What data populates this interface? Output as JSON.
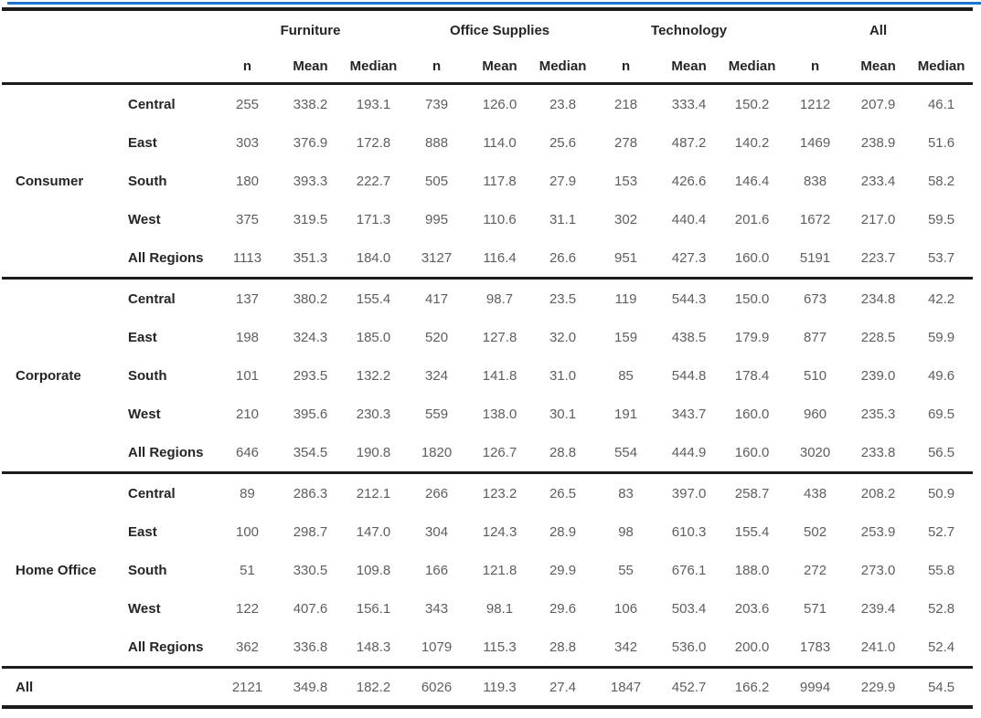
{
  "colors": {
    "accent_blue": "#1c76d2",
    "rule_black": "#1c1c1c",
    "label_text": "#252525",
    "value_text": "#5e5e5e",
    "background": "#ffffff"
  },
  "chart_data": {
    "type": "table",
    "title": "",
    "column_groups": [
      "Furniture",
      "Office Supplies",
      "Technology",
      "All"
    ],
    "sub_columns": [
      "n",
      "Mean",
      "Median"
    ],
    "row_groups": [
      {
        "label": "Consumer",
        "rows": [
          {
            "label": "Central",
            "values": [
              "255",
              "338.2",
              "193.1",
              "739",
              "126.0",
              "23.8",
              "218",
              "333.4",
              "150.2",
              "1212",
              "207.9",
              "46.1"
            ]
          },
          {
            "label": "East",
            "values": [
              "303",
              "376.9",
              "172.8",
              "888",
              "114.0",
              "25.6",
              "278",
              "487.2",
              "140.2",
              "1469",
              "238.9",
              "51.6"
            ]
          },
          {
            "label": "South",
            "values": [
              "180",
              "393.3",
              "222.7",
              "505",
              "117.8",
              "27.9",
              "153",
              "426.6",
              "146.4",
              "838",
              "233.4",
              "58.2"
            ]
          },
          {
            "label": "West",
            "values": [
              "375",
              "319.5",
              "171.3",
              "995",
              "110.6",
              "31.1",
              "302",
              "440.4",
              "201.6",
              "1672",
              "217.0",
              "59.5"
            ]
          },
          {
            "label": "All Regions",
            "values": [
              "1113",
              "351.3",
              "184.0",
              "3127",
              "116.4",
              "26.6",
              "951",
              "427.3",
              "160.0",
              "5191",
              "223.7",
              "53.7"
            ]
          }
        ]
      },
      {
        "label": "Corporate",
        "rows": [
          {
            "label": "Central",
            "values": [
              "137",
              "380.2",
              "155.4",
              "417",
              "98.7",
              "23.5",
              "119",
              "544.3",
              "150.0",
              "673",
              "234.8",
              "42.2"
            ]
          },
          {
            "label": "East",
            "values": [
              "198",
              "324.3",
              "185.0",
              "520",
              "127.8",
              "32.0",
              "159",
              "438.5",
              "179.9",
              "877",
              "228.5",
              "59.9"
            ]
          },
          {
            "label": "South",
            "values": [
              "101",
              "293.5",
              "132.2",
              "324",
              "141.8",
              "31.0",
              "85",
              "544.8",
              "178.4",
              "510",
              "239.0",
              "49.6"
            ]
          },
          {
            "label": "West",
            "values": [
              "210",
              "395.6",
              "230.3",
              "559",
              "138.0",
              "30.1",
              "191",
              "343.7",
              "160.0",
              "960",
              "235.3",
              "69.5"
            ]
          },
          {
            "label": "All Regions",
            "values": [
              "646",
              "354.5",
              "190.8",
              "1820",
              "126.7",
              "28.8",
              "554",
              "444.9",
              "160.0",
              "3020",
              "233.8",
              "56.5"
            ]
          }
        ]
      },
      {
        "label": "Home Office",
        "rows": [
          {
            "label": "Central",
            "values": [
              "89",
              "286.3",
              "212.1",
              "266",
              "123.2",
              "26.5",
              "83",
              "397.0",
              "258.7",
              "438",
              "208.2",
              "50.9"
            ]
          },
          {
            "label": "East",
            "values": [
              "100",
              "298.7",
              "147.0",
              "304",
              "124.3",
              "28.9",
              "98",
              "610.3",
              "155.4",
              "502",
              "253.9",
              "52.7"
            ]
          },
          {
            "label": "South",
            "values": [
              "51",
              "330.5",
              "109.8",
              "166",
              "121.8",
              "29.9",
              "55",
              "676.1",
              "188.0",
              "272",
              "273.0",
              "55.8"
            ]
          },
          {
            "label": "West",
            "values": [
              "122",
              "407.6",
              "156.1",
              "343",
              "98.1",
              "29.6",
              "106",
              "503.4",
              "203.6",
              "571",
              "239.4",
              "52.8"
            ]
          },
          {
            "label": "All Regions",
            "values": [
              "362",
              "336.8",
              "148.3",
              "1079",
              "115.3",
              "28.8",
              "342",
              "536.0",
              "200.0",
              "1783",
              "241.0",
              "52.4"
            ]
          }
        ]
      }
    ],
    "total_row": {
      "label": "All",
      "values": [
        "2121",
        "349.8",
        "182.2",
        "6026",
        "119.3",
        "27.4",
        "1847",
        "452.7",
        "166.2",
        "9994",
        "229.9",
        "54.5"
      ]
    }
  }
}
